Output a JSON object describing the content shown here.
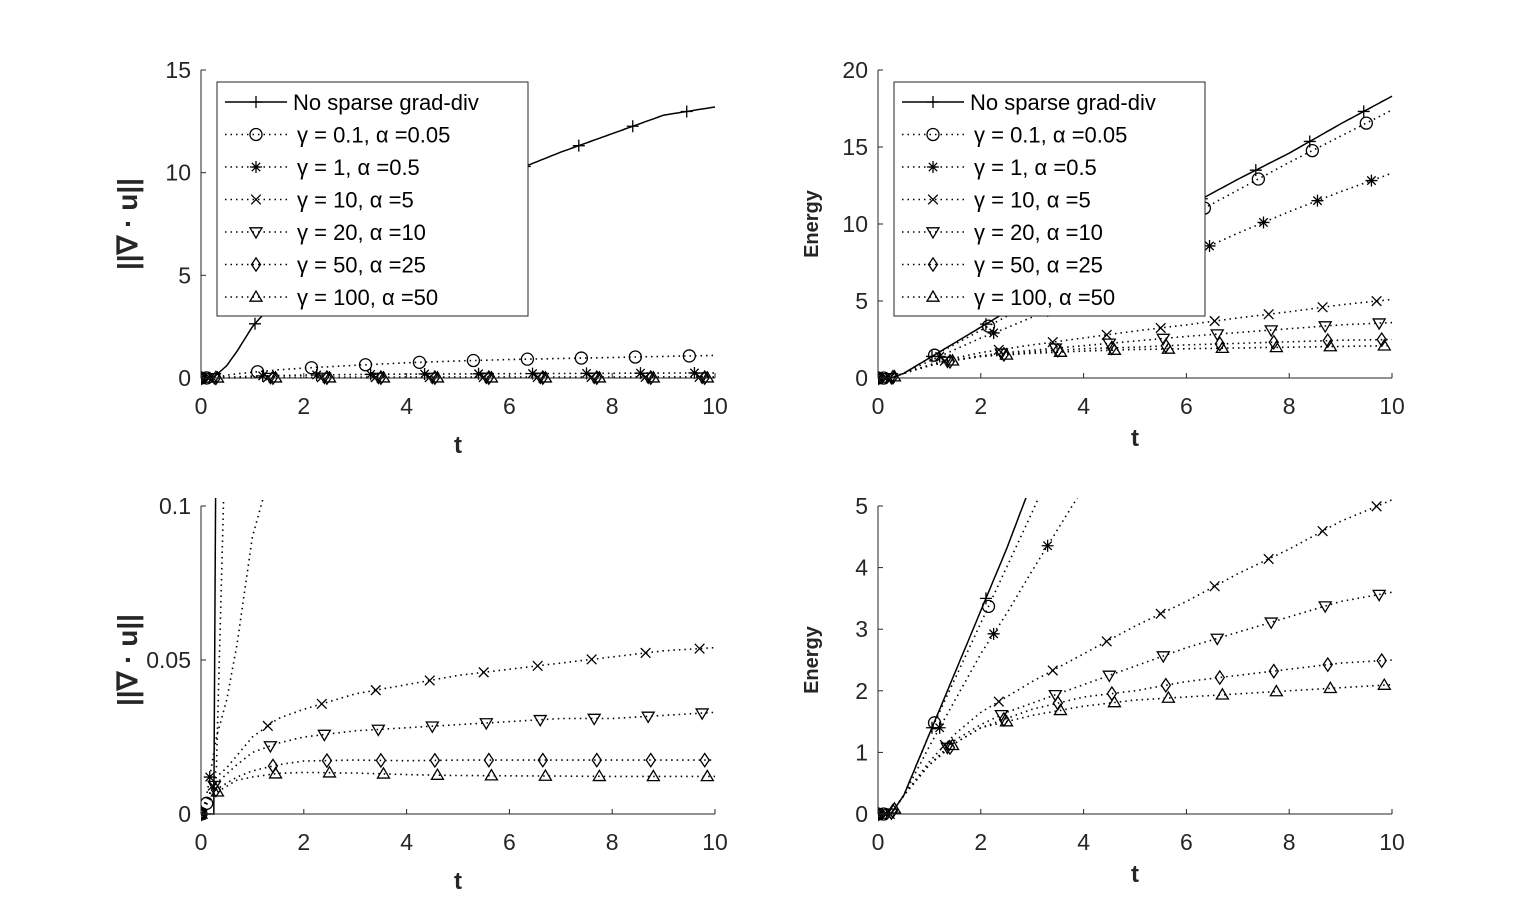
{
  "chart_data": {
    "type": "line",
    "legend": {
      "placement": "top-left",
      "entries": [
        "No sparse grad-div",
        "γ = 0.1, α =0.05",
        "γ = 1, α =0.5",
        "γ = 10, α =5",
        "γ = 20, α =10",
        "γ = 50, α =25",
        "γ = 100, α =50"
      ]
    },
    "markers": [
      "plus",
      "circle",
      "asterisk",
      "x",
      "triangle-down",
      "diamond",
      "triangle-up"
    ],
    "datasets": {
      "divergence": {
        "x": [
          0,
          0.1,
          0.25,
          0.3,
          0.5,
          0.7,
          1,
          1.5,
          2,
          3,
          4,
          5,
          6,
          7,
          8,
          9,
          10
        ],
        "series": [
          {
            "name": "No sparse grad-div",
            "style": "solid",
            "values": [
              0,
              0,
              0,
              0.15,
              0.6,
              1.3,
              2.5,
              3.9,
              4.9,
              6.5,
              7.8,
              8.9,
              10,
              11,
              11.9,
              12.8,
              13.2
            ]
          },
          {
            "name": "γ = 0.1, α =0.05",
            "style": "dotted",
            "values": [
              0,
              0.003,
              0.01,
              0.015,
              0.14,
              0.2,
              0.28,
              0.4,
              0.48,
              0.62,
              0.74,
              0.83,
              0.9,
              0.95,
              1.0,
              1.05,
              1.1
            ]
          },
          {
            "name": "γ = 1, α =0.5",
            "style": "dotted",
            "values": [
              0,
              0.005,
              0.02,
              0.025,
              0.037,
              0.055,
              0.09,
              0.12,
              0.14,
              0.17,
              0.19,
              0.2,
              0.21,
              0.22,
              0.23,
              0.24,
              0.25
            ]
          },
          {
            "name": "γ = 10, α =5",
            "style": "dotted",
            "values": [
              0,
              0.004,
              0.01,
              0.012,
              0.015,
              0.019,
              0.025,
              0.031,
              0.034,
              0.039,
              0.042,
              0.045,
              0.047,
              0.049,
              0.051,
              0.053,
              0.054
            ]
          },
          {
            "name": "γ = 20, α =10",
            "style": "dotted",
            "values": [
              0,
              0.004,
              0.009,
              0.01,
              0.013,
              0.016,
              0.02,
              0.023,
              0.025,
              0.027,
              0.028,
              0.029,
              0.03,
              0.031,
              0.031,
              0.032,
              0.033
            ]
          },
          {
            "name": "γ = 50, α =25",
            "style": "dotted",
            "values": [
              0,
              0.003,
              0.007,
              0.008,
              0.01,
              0.012,
              0.014,
              0.016,
              0.0172,
              0.0175,
              0.0173,
              0.0175,
              0.0175,
              0.0175,
              0.0175,
              0.0175,
              0.0175
            ]
          },
          {
            "name": "γ = 100, α =50",
            "style": "dotted",
            "values": [
              0,
              0.003,
              0.006,
              0.007,
              0.009,
              0.011,
              0.012,
              0.0132,
              0.0135,
              0.0133,
              0.0128,
              0.0125,
              0.0124,
              0.0123,
              0.0122,
              0.0122,
              0.0122
            ]
          }
        ]
      },
      "energy": {
        "x": [
          0,
          0.25,
          0.5,
          1,
          1.5,
          2,
          2.5,
          3,
          4,
          5,
          6,
          7,
          8,
          9,
          10
        ],
        "series": [
          {
            "name": "No sparse grad-div",
            "style": "solid",
            "values": [
              0,
              0,
              0.3,
              1.3,
              2.3,
              3.3,
              4.3,
              5.4,
              7.4,
              9.3,
              11.1,
              12.9,
              14.6,
              16.5,
              18.3
            ]
          },
          {
            "name": "γ = 0.1, α =0.05",
            "style": "dotted",
            "values": [
              0,
              0,
              0.3,
              1.3,
              2.2,
              3.1,
              4.0,
              4.9,
              6.8,
              8.6,
              10.4,
              12.2,
              14,
              15.7,
              17.4
            ]
          },
          {
            "name": "γ = 1, α =0.5",
            "style": "dotted",
            "values": [
              0,
              0,
              0.3,
              1.1,
              1.85,
              2.6,
              3.25,
              3.95,
              5.3,
              6.6,
              7.9,
              9.4,
              10.8,
              12.1,
              13.3
            ]
          },
          {
            "name": "γ = 10, α =5",
            "style": "dotted",
            "values": [
              0,
              0,
              0.3,
              0.85,
              1.3,
              1.65,
              1.9,
              2.15,
              2.6,
              3.05,
              3.45,
              3.9,
              4.3,
              4.75,
              5.1
            ]
          },
          {
            "name": "γ = 20, α =10",
            "style": "dotted",
            "values": [
              0,
              0,
              0.3,
              0.8,
              1.2,
              1.45,
              1.65,
              1.8,
              2.1,
              2.4,
              2.7,
              2.95,
              3.2,
              3.45,
              3.6
            ]
          },
          {
            "name": "γ = 50, α =25",
            "style": "dotted",
            "values": [
              0,
              0,
              0.3,
              0.8,
              1.15,
              1.4,
              1.55,
              1.7,
              1.9,
              2.0,
              2.15,
              2.25,
              2.35,
              2.45,
              2.5
            ]
          },
          {
            "name": "γ = 100, α =50",
            "style": "dotted",
            "values": [
              0,
              0,
              0.3,
              0.8,
              1.15,
              1.4,
              1.5,
              1.6,
              1.75,
              1.85,
              1.9,
              1.95,
              2.0,
              2.05,
              2.1
            ]
          }
        ]
      }
    },
    "panels": [
      {
        "id": "top-left",
        "dataset": "divergence",
        "xlabel": "t",
        "ylabel": "||∇ · u||",
        "xlim": [
          0,
          10
        ],
        "ylim": [
          0,
          15
        ],
        "xticks": [
          "0",
          "2",
          "4",
          "6",
          "8",
          "10"
        ],
        "yticks": [
          "0",
          "5",
          "10",
          "15"
        ],
        "legend": true
      },
      {
        "id": "top-right",
        "dataset": "energy",
        "xlabel": "t",
        "ylabel": "Energy",
        "xlim": [
          0,
          10
        ],
        "ylim": [
          0,
          20
        ],
        "xticks": [
          "0",
          "2",
          "4",
          "6",
          "8",
          "10"
        ],
        "yticks": [
          "0",
          "5",
          "10",
          "15",
          "20"
        ],
        "legend": true
      },
      {
        "id": "bottom-left",
        "dataset": "divergence",
        "xlabel": "t",
        "ylabel": "||∇ · u||",
        "xlim": [
          0,
          10
        ],
        "ylim": [
          0,
          0.1
        ],
        "xticks": [
          "0",
          "2",
          "4",
          "6",
          "8",
          "10"
        ],
        "yticks": [
          "0",
          "0.05",
          "0.1"
        ],
        "legend": false
      },
      {
        "id": "bottom-right",
        "dataset": "energy",
        "xlabel": "t",
        "ylabel": "Energy",
        "xlim": [
          0,
          10
        ],
        "ylim": [
          0,
          5
        ],
        "xticks": [
          "0",
          "2",
          "4",
          "6",
          "8",
          "10"
        ],
        "yticks": [
          "0",
          "1",
          "2",
          "3",
          "4",
          "5"
        ],
        "legend": false
      }
    ]
  }
}
